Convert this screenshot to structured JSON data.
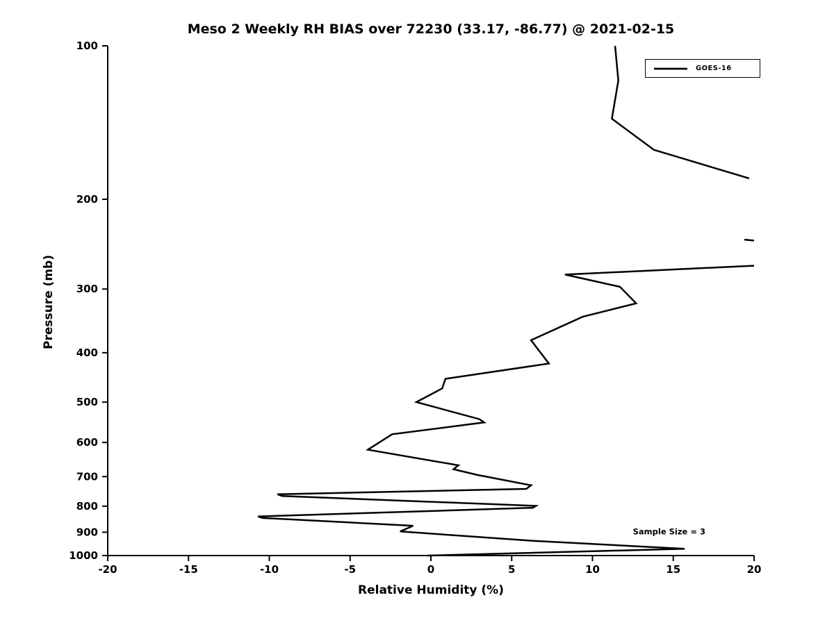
{
  "chart_data": {
    "type": "line",
    "title": "Meso 2 Weekly RH BIAS over 72230 (33.17, -86.77) @ 2021-02-15",
    "xlabel": "Relative Humidity (%)",
    "ylabel": "Pressure (mb)",
    "xlim": [
      -20,
      20
    ],
    "ylim_top": 100,
    "ylim_bottom": 1000,
    "yscale": "log",
    "y_inverted": true,
    "grid": false,
    "x_tick_values": [
      -20,
      -15,
      -10,
      -5,
      0,
      5,
      10,
      15,
      20
    ],
    "x_tick_labels": [
      "-20",
      "-15",
      "-10",
      "-5",
      "0",
      "5",
      "10",
      "15",
      "20"
    ],
    "y_tick_values": [
      100,
      200,
      300,
      400,
      500,
      600,
      700,
      800,
      900,
      1000
    ],
    "y_tick_labels": [
      "100",
      "200",
      "300",
      "400",
      "500",
      "600",
      "700",
      "800",
      "900",
      "1000"
    ],
    "legend": {
      "position": "upper right",
      "entries": [
        {
          "label": "GOES-16",
          "color": "#000000",
          "line_width": 2.8
        }
      ]
    },
    "annotations": [
      {
        "text": "Sample Size = 3",
        "x": 12.5,
        "y": 900
      }
    ],
    "series": [
      {
        "name": "GOES-16",
        "color": "#000000",
        "line_width": 2.5,
        "units": {
          "x": "RH bias (%)",
          "y": "Pressure (mb)"
        },
        "segments": [
          [
            [
              11.4,
              100
            ],
            [
              11.6,
              117
            ],
            [
              11.2,
              139
            ],
            [
              13.8,
              160
            ],
            [
              19.7,
              182
            ]
          ],
          [
            [
              19.4,
              240
            ],
            [
              20.0,
              241
            ]
          ],
          [
            [
              20.0,
              270
            ],
            [
              8.3,
              281
            ],
            [
              11.7,
              297
            ],
            [
              12.7,
              320
            ],
            [
              9.4,
              340
            ],
            [
              6.2,
              378
            ],
            [
              7.3,
              420
            ],
            [
              0.9,
              450
            ],
            [
              0.7,
              470
            ],
            [
              -0.9,
              500
            ],
            [
              3.0,
              540
            ],
            [
              3.3,
              548
            ],
            [
              -2.4,
              578
            ],
            [
              -3.9,
              620
            ],
            [
              1.7,
              665
            ],
            [
              1.4,
              677
            ],
            [
              2.9,
              695
            ],
            [
              6.2,
              728
            ],
            [
              5.9,
              740
            ],
            [
              -9.5,
              758
            ],
            [
              -9.2,
              764
            ],
            [
              6.5,
              799
            ],
            [
              6.3,
              806
            ],
            [
              -10.7,
              838
            ],
            [
              -10.4,
              844
            ],
            [
              -1.1,
              874
            ],
            [
              -1.9,
              897
            ],
            [
              6.2,
              935
            ],
            [
              15.7,
              970
            ],
            [
              -0.2,
              1000
            ]
          ]
        ]
      }
    ]
  }
}
